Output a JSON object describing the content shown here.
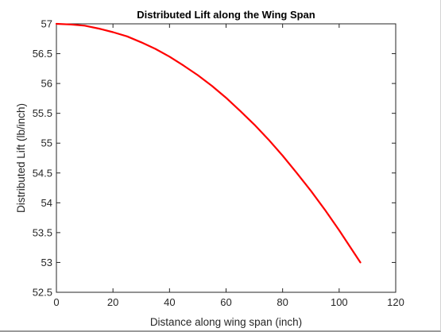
{
  "chart_data": {
    "type": "line",
    "title": "Distributed Lift along the Wing Span",
    "xlabel": "Distance along wing span (inch)",
    "ylabel": "Distributed Lift (lb/inch)",
    "xlim": [
      0,
      120
    ],
    "ylim": [
      52.5,
      57
    ],
    "xticks": [
      0,
      20,
      40,
      60,
      80,
      100,
      120
    ],
    "yticks": [
      52.5,
      53,
      53.5,
      54,
      54.5,
      55,
      55.5,
      56,
      56.5,
      57
    ],
    "xtick_labels": [
      "0",
      "20",
      "40",
      "60",
      "80",
      "100",
      "120"
    ],
    "ytick_labels": [
      "52.5",
      "53",
      "53.5",
      "54",
      "54.5",
      "55",
      "55.5",
      "56",
      "56.5",
      "57"
    ],
    "grid": false,
    "legend": "none",
    "series": [
      {
        "color": "#ff0000",
        "x": [
          0,
          5,
          10,
          15,
          20,
          25,
          30,
          35,
          40,
          45,
          50,
          55,
          60,
          65,
          70,
          75,
          80,
          85,
          90,
          95,
          100,
          105,
          107.5
        ],
        "y": [
          57,
          56.99,
          56.97,
          56.92,
          56.86,
          56.79,
          56.69,
          56.58,
          56.45,
          56.3,
          56.14,
          55.96,
          55.76,
          55.54,
          55.31,
          55.06,
          54.79,
          54.5,
          54.2,
          53.88,
          53.54,
          53.18,
          53
        ]
      }
    ]
  }
}
